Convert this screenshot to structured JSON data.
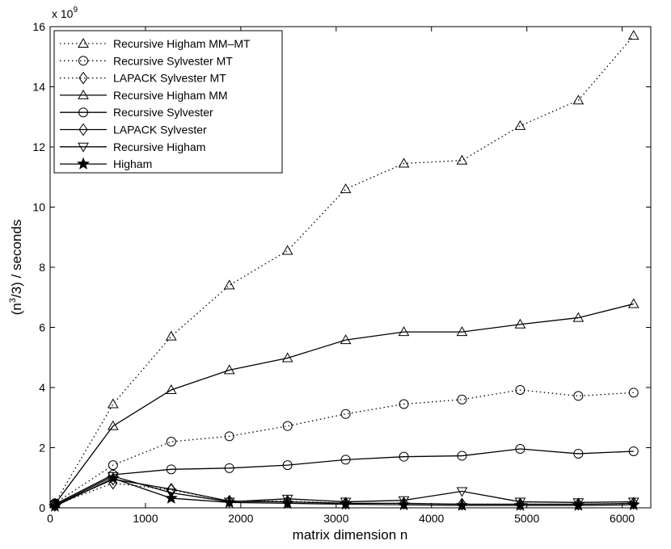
{
  "chart_data": {
    "type": "line",
    "title": "",
    "xlabel": "matrix dimension n",
    "ylabel_base": "(n",
    "ylabel_sup": "3",
    "ylabel_rest": "/3) / seconds",
    "y_exponent_prefix": "x 10",
    "y_exponent_power": "9",
    "xlim": [
      0,
      6300
    ],
    "ylim": [
      0,
      16
    ],
    "x_ticks": [
      0,
      1000,
      2000,
      3000,
      4000,
      5000,
      6000
    ],
    "x_tick_labels": [
      "0",
      "1000",
      "2000",
      "3000",
      "4000",
      "5000",
      "6000"
    ],
    "y_ticks": [
      0,
      2,
      4,
      6,
      8,
      10,
      12,
      14,
      16
    ],
    "y_tick_labels": [
      "0",
      "2",
      "4",
      "6",
      "8",
      "10",
      "12",
      "14",
      "16"
    ],
    "grid": false,
    "legend_position": "top-left",
    "x": [
      50,
      660,
      1270,
      1880,
      2490,
      3100,
      3710,
      4320,
      4930,
      5540,
      6120
    ],
    "series": [
      {
        "name": "Recursive Higham MM–MT",
        "style": "dotted",
        "marker": "triangle-up",
        "values": [
          0.15,
          3.45,
          5.7,
          7.4,
          8.55,
          10.6,
          11.45,
          11.55,
          12.7,
          13.55,
          15.7
        ]
      },
      {
        "name": "Recursive Sylvester MT",
        "style": "dotted",
        "marker": "circle",
        "values": [
          0.15,
          1.42,
          2.2,
          2.38,
          2.72,
          3.12,
          3.45,
          3.6,
          3.92,
          3.72,
          3.83
        ]
      },
      {
        "name": "LAPACK Sylvester MT",
        "style": "dotted",
        "marker": "diamond",
        "values": [
          0.1,
          0.82,
          0.6,
          0.22,
          0.22,
          0.15,
          0.15,
          0.12,
          0.12,
          0.12,
          0.15
        ]
      },
      {
        "name": "Recursive Higham MM",
        "style": "solid",
        "marker": "triangle-up",
        "values": [
          0.12,
          2.72,
          3.92,
          4.58,
          4.98,
          5.58,
          5.85,
          5.85,
          6.1,
          6.32,
          6.78
        ]
      },
      {
        "name": "Recursive Sylvester",
        "style": "solid",
        "marker": "circle",
        "values": [
          0.12,
          1.1,
          1.28,
          1.32,
          1.42,
          1.6,
          1.7,
          1.73,
          1.96,
          1.8,
          1.88
        ]
      },
      {
        "name": "LAPACK Sylvester",
        "style": "solid",
        "marker": "diamond",
        "values": [
          0.08,
          0.95,
          0.62,
          0.22,
          0.2,
          0.15,
          0.15,
          0.12,
          0.12,
          0.12,
          0.15
        ]
      },
      {
        "name": "Recursive Higham",
        "style": "solid",
        "marker": "triangle-down",
        "values": [
          0.08,
          1.05,
          0.5,
          0.2,
          0.3,
          0.2,
          0.25,
          0.55,
          0.2,
          0.18,
          0.2
        ]
      },
      {
        "name": "Higham",
        "style": "solid",
        "marker": "star",
        "values": [
          0.05,
          0.98,
          0.32,
          0.18,
          0.15,
          0.12,
          0.1,
          0.08,
          0.08,
          0.08,
          0.1
        ]
      }
    ]
  }
}
